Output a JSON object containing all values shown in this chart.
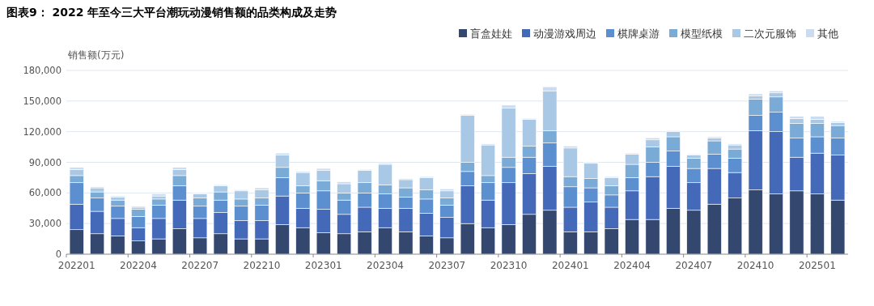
{
  "chart_data": {
    "type": "bar",
    "stacked": true,
    "title": "图表9：  2022 年至今三大平台潮玩动漫销售额的品类构成及走势",
    "ylabel": "销售额(万元)",
    "categories": [
      "202201",
      null,
      null,
      "202204",
      null,
      null,
      "202207",
      null,
      null,
      "202210",
      null,
      null,
      "202301",
      null,
      null,
      "202304",
      null,
      null,
      "202307",
      null,
      null,
      "202310",
      null,
      null,
      "202401",
      null,
      null,
      "202404",
      null,
      null,
      "202407",
      null,
      null,
      "202410",
      null,
      null,
      "202501",
      null
    ],
    "series": [
      {
        "name": "盲盒娃娃",
        "color": "#33476f",
        "values": [
          24000,
          20000,
          18000,
          13000,
          15000,
          25000,
          16000,
          20000,
          15000,
          15000,
          29000,
          26000,
          21000,
          20000,
          22000,
          26000,
          22000,
          18000,
          16000,
          30000,
          26000,
          29000,
          39000,
          43000,
          22000,
          22000,
          25000,
          34000,
          34000,
          45000,
          43000,
          49000,
          55000,
          63000,
          59000,
          62000,
          59000,
          53000
        ]
      },
      {
        "name": "动漫游戏周边",
        "color": "#4569b9",
        "values": [
          25000,
          22000,
          17000,
          13000,
          20000,
          28000,
          19000,
          21000,
          18000,
          18000,
          28000,
          19000,
          23000,
          19000,
          24000,
          19000,
          23000,
          22000,
          20000,
          37000,
          27000,
          41000,
          40000,
          43000,
          24000,
          29000,
          21000,
          28000,
          42000,
          41000,
          27000,
          35000,
          25000,
          58000,
          61000,
          33000,
          40000,
          44000
        ]
      },
      {
        "name": "棋牌桌游",
        "color": "#5b8fd0",
        "values": [
          21000,
          13000,
          12000,
          11000,
          13000,
          14000,
          12000,
          12000,
          14000,
          15000,
          18000,
          15000,
          18000,
          14000,
          14000,
          14000,
          11000,
          14000,
          12000,
          14000,
          17000,
          15000,
          16000,
          23000,
          20000,
          14000,
          12000,
          13000,
          14000,
          15000,
          14000,
          14000,
          14000,
          15000,
          19000,
          19000,
          16000,
          17000
        ]
      },
      {
        "name": "模型纸模",
        "color": "#7aaad6",
        "values": [
          7000,
          6000,
          6000,
          7000,
          6000,
          10000,
          8000,
          8000,
          7000,
          7000,
          10000,
          7000,
          10000,
          7000,
          10000,
          9000,
          9000,
          9000,
          7000,
          9000,
          7000,
          10000,
          11000,
          12000,
          10000,
          9000,
          9000,
          13000,
          15000,
          14000,
          10000,
          13000,
          9000,
          16000,
          15000,
          14000,
          13000,
          12000
        ]
      },
      {
        "name": "二次元服饰",
        "color": "#a9c8e6",
        "values": [
          6000,
          4000,
          3000,
          2000,
          3000,
          6000,
          4000,
          6000,
          8000,
          8000,
          12000,
          13000,
          10000,
          9000,
          12000,
          20000,
          8000,
          12000,
          7000,
          46000,
          30000,
          48000,
          26000,
          39000,
          28000,
          15000,
          8000,
          10000,
          7000,
          5000,
          3000,
          3000,
          4000,
          3000,
          4000,
          5000,
          4000,
          3000
        ]
      },
      {
        "name": "其他",
        "color": "#cbdcf0",
        "values": [
          2000,
          1000,
          1000,
          1000,
          2000,
          2000,
          1000,
          1000,
          1000,
          2000,
          2000,
          1000,
          2000,
          2000,
          1000,
          1000,
          1000,
          1000,
          2000,
          1000,
          1000,
          3000,
          1000,
          4000,
          2000,
          1000,
          1000,
          1000,
          2000,
          1000,
          1000,
          1000,
          1000,
          2000,
          2000,
          2000,
          3000,
          1000
        ]
      }
    ],
    "ylim": [
      0,
      180000
    ],
    "yticks": [
      0,
      {
        "value": 30000,
        "label": "30,000"
      },
      {
        "value": 60000,
        "label": "60,000"
      },
      {
        "value": 90000,
        "label": "90,000"
      },
      {
        "value": 120000,
        "label": "120,000"
      },
      {
        "value": 150000,
        "label": "150,000"
      },
      {
        "value": 180000,
        "label": "180,000"
      }
    ],
    "grid": "y",
    "legend": "top right"
  }
}
